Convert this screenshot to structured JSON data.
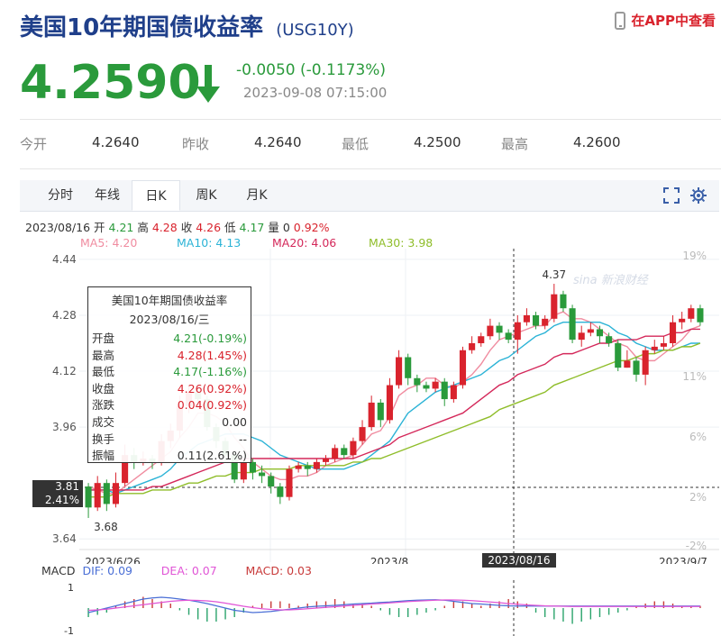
{
  "header": {
    "title": "美国10年期国债收益率",
    "code": "(USG10Y)",
    "app_link": "在APP中查看",
    "phone_icon": "phone-icon"
  },
  "quote": {
    "price": "4.2590",
    "change": "-0.0050 (-0.1173%)",
    "timestamp": "2023-09-08 07:15:00",
    "down_color": "#2a9a3b",
    "up_color": "#d9232d"
  },
  "stats": [
    {
      "label": "今开",
      "value": "4.2640"
    },
    {
      "label": "昨收",
      "value": "4.2640"
    },
    {
      "label": "最低",
      "value": "4.2500"
    },
    {
      "label": "最高",
      "value": "4.2600"
    }
  ],
  "tabs": [
    {
      "label": "分时"
    },
    {
      "label": "年线"
    },
    {
      "label": "日K"
    },
    {
      "label": "周K"
    },
    {
      "label": "月K"
    }
  ],
  "active_tab": "日K",
  "info_bar": {
    "date": "2023/08/16",
    "open_label": "开",
    "open": "4.21",
    "high_label": "高",
    "high": "4.28",
    "close_label": "收",
    "close": "4.26",
    "low_label": "低",
    "low": "4.17",
    "vol_label": "量",
    "vol": "0",
    "pct": "0.92%"
  },
  "ma_bar": [
    {
      "text": "MA5: 4.20",
      "color": "#f08ca0"
    },
    {
      "text": "MA10: 4.13",
      "color": "#2bb3d6"
    },
    {
      "text": "MA20: 4.06",
      "color": "#d4285a"
    },
    {
      "text": "MA30: 3.98",
      "color": "#8fbd2a"
    }
  ],
  "tooltip": {
    "title": "美国10年期国债收益率",
    "date": "2023/08/16/三",
    "rows": [
      {
        "k": "开盘",
        "v": "4.21(-0.19%)",
        "c": "#2a9a3b"
      },
      {
        "k": "最高",
        "v": "4.28(1.45%)",
        "c": "#d9232d"
      },
      {
        "k": "最低",
        "v": "4.17(-1.16%)",
        "c": "#2a9a3b"
      },
      {
        "k": "收盘",
        "v": "4.26(0.92%)",
        "c": "#d9232d"
      },
      {
        "k": "涨跌",
        "v": "0.04(0.92%)",
        "c": "#d9232d"
      },
      {
        "k": "成交",
        "v": "0.00",
        "c": "#333333"
      },
      {
        "k": "换手",
        "v": "--",
        "c": "#333333"
      },
      {
        "k": "振幅",
        "v": "0.11(2.61%)",
        "c": "#333333"
      }
    ]
  },
  "crosshair": {
    "price_label": "3.81",
    "pct_label": "2.41%",
    "date_label": "2023/08/16"
  },
  "watermark": "sina 新浪财经",
  "macd": {
    "label": "MACD",
    "dif": "DIF: 0.09",
    "dea": "DEA: 0.07",
    "macd": "MACD: 0.03",
    "axis_top": "1",
    "axis_bottom": "-1",
    "dif_color": "#4a6fd6",
    "dea_color": "#e055d6",
    "macd_color": "#c83a3a"
  },
  "chart_data": {
    "type": "candlestick",
    "y_ticks": [
      "4.44",
      "4.28",
      "4.12",
      "3.96",
      "3.64"
    ],
    "pct_ticks": [
      "19%",
      "11%",
      "6%",
      "2%",
      "-2%"
    ],
    "x_labels": [
      "2023/6/26",
      "2023/8",
      "2023/9/7"
    ],
    "ylim": [
      3.62,
      4.45
    ],
    "high_marker": "4.37",
    "low_marker": "3.68",
    "candles": [
      [
        3.79,
        3.73,
        3.8,
        3.7
      ],
      [
        3.73,
        3.8,
        3.82,
        3.72
      ],
      [
        3.8,
        3.74,
        3.81,
        3.72
      ],
      [
        3.74,
        3.8,
        3.83,
        3.73
      ],
      [
        3.8,
        3.88,
        3.91,
        3.79
      ],
      [
        3.88,
        3.86,
        3.9,
        3.84
      ],
      [
        3.86,
        3.87,
        3.89,
        3.85
      ],
      [
        3.87,
        3.86,
        3.88,
        3.84
      ],
      [
        3.86,
        3.92,
        3.94,
        3.85
      ],
      [
        3.92,
        3.95,
        3.97,
        3.9
      ],
      [
        3.95,
        4.02,
        4.05,
        3.93
      ],
      [
        4.02,
        4.06,
        4.08,
        4.0
      ],
      [
        4.06,
        4.04,
        4.07,
        4.02
      ],
      [
        4.04,
        3.96,
        4.05,
        3.95
      ],
      [
        3.96,
        3.92,
        3.97,
        3.9
      ],
      [
        3.92,
        3.88,
        3.93,
        3.86
      ],
      [
        3.88,
        3.81,
        3.89,
        3.8
      ],
      [
        3.81,
        3.86,
        3.87,
        3.8
      ],
      [
        3.86,
        3.83,
        3.87,
        3.81
      ],
      [
        3.83,
        3.82,
        3.85,
        3.8
      ],
      [
        3.82,
        3.79,
        3.83,
        3.77
      ],
      [
        3.79,
        3.76,
        3.8,
        3.74
      ],
      [
        3.76,
        3.84,
        3.85,
        3.75
      ],
      [
        3.84,
        3.85,
        3.86,
        3.83
      ],
      [
        3.85,
        3.84,
        3.86,
        3.82
      ],
      [
        3.84,
        3.86,
        3.87,
        3.83
      ],
      [
        3.86,
        3.87,
        3.88,
        3.85
      ],
      [
        3.87,
        3.9,
        3.91,
        3.86
      ],
      [
        3.9,
        3.88,
        3.91,
        3.87
      ],
      [
        3.88,
        3.92,
        3.93,
        3.87
      ],
      [
        3.92,
        3.96,
        3.98,
        3.91
      ],
      [
        3.96,
        4.03,
        4.05,
        3.95
      ],
      [
        4.03,
        3.98,
        4.04,
        3.96
      ],
      [
        3.98,
        4.08,
        4.1,
        3.97
      ],
      [
        4.08,
        4.16,
        4.18,
        4.07
      ],
      [
        4.16,
        4.1,
        4.17,
        4.08
      ],
      [
        4.1,
        4.08,
        4.11,
        4.06
      ],
      [
        4.08,
        4.07,
        4.09,
        4.06
      ],
      [
        4.07,
        4.09,
        4.1,
        4.06
      ],
      [
        4.09,
        4.04,
        4.1,
        4.02
      ],
      [
        4.04,
        4.08,
        4.09,
        4.03
      ],
      [
        4.08,
        4.18,
        4.19,
        4.07
      ],
      [
        4.18,
        4.2,
        4.22,
        4.17
      ],
      [
        4.2,
        4.22,
        4.23,
        4.19
      ],
      [
        4.22,
        4.25,
        4.27,
        4.21
      ],
      [
        4.25,
        4.23,
        4.26,
        4.21
      ],
      [
        4.23,
        4.21,
        4.24,
        4.2
      ],
      [
        4.21,
        4.26,
        4.28,
        4.17
      ],
      [
        4.26,
        4.28,
        4.3,
        4.25
      ],
      [
        4.28,
        4.25,
        4.29,
        4.24
      ],
      [
        4.25,
        4.27,
        4.28,
        4.24
      ],
      [
        4.27,
        4.34,
        4.37,
        4.26
      ],
      [
        4.34,
        4.3,
        4.35,
        4.29
      ],
      [
        4.3,
        4.21,
        4.31,
        4.2
      ],
      [
        4.21,
        4.23,
        4.25,
        4.19
      ],
      [
        4.23,
        4.24,
        4.26,
        4.22
      ],
      [
        4.24,
        4.22,
        4.25,
        4.2
      ],
      [
        4.22,
        4.2,
        4.23,
        4.19
      ],
      [
        4.2,
        4.13,
        4.21,
        4.12
      ],
      [
        4.13,
        4.15,
        4.18,
        4.13
      ],
      [
        4.15,
        4.11,
        4.16,
        4.09
      ],
      [
        4.11,
        4.18,
        4.19,
        4.08
      ],
      [
        4.18,
        4.19,
        4.21,
        4.17
      ],
      [
        4.19,
        4.2,
        4.22,
        4.18
      ],
      [
        4.2,
        4.26,
        4.28,
        4.19
      ],
      [
        4.26,
        4.27,
        4.29,
        4.24
      ],
      [
        4.27,
        4.3,
        4.31,
        4.26
      ],
      [
        4.3,
        4.26,
        4.31,
        4.25
      ]
    ],
    "ma5": [
      3.79,
      3.78,
      3.77,
      3.77,
      3.79,
      3.81,
      3.83,
      3.85,
      3.87,
      3.89,
      3.93,
      3.96,
      4.0,
      4.0,
      3.99,
      3.97,
      3.93,
      3.9,
      3.86,
      3.84,
      3.82,
      3.81,
      3.81,
      3.82,
      3.82,
      3.83,
      3.85,
      3.86,
      3.87,
      3.88,
      3.91,
      3.94,
      3.95,
      3.99,
      4.05,
      4.07,
      4.08,
      4.1,
      4.1,
      4.08,
      4.07,
      4.09,
      4.11,
      4.14,
      4.18,
      4.21,
      4.22,
      4.23,
      4.24,
      4.25,
      4.25,
      4.28,
      4.29,
      4.27,
      4.27,
      4.26,
      4.24,
      4.22,
      4.2,
      4.19,
      4.16,
      4.15,
      4.15,
      4.17,
      4.19,
      4.21,
      4.24,
      4.25
    ],
    "ma10": [
      3.78,
      3.78,
      3.78,
      3.77,
      3.78,
      3.79,
      3.8,
      3.81,
      3.82,
      3.84,
      3.87,
      3.89,
      3.91,
      3.92,
      3.93,
      3.94,
      3.94,
      3.94,
      3.93,
      3.92,
      3.9,
      3.88,
      3.87,
      3.86,
      3.85,
      3.84,
      3.84,
      3.84,
      3.84,
      3.85,
      3.86,
      3.88,
      3.9,
      3.92,
      3.96,
      4.0,
      4.02,
      4.04,
      4.06,
      4.07,
      4.08,
      4.09,
      4.1,
      4.11,
      4.13,
      4.15,
      4.16,
      4.18,
      4.2,
      4.22,
      4.23,
      4.25,
      4.26,
      4.26,
      4.26,
      4.26,
      4.26,
      4.25,
      4.23,
      4.22,
      4.2,
      4.19,
      4.18,
      4.18,
      4.18,
      4.19,
      4.2,
      4.2
    ],
    "ma20": [
      3.78,
      3.78,
      3.78,
      3.78,
      3.78,
      3.78,
      3.78,
      3.79,
      3.79,
      3.8,
      3.81,
      3.82,
      3.83,
      3.84,
      3.85,
      3.86,
      3.86,
      3.87,
      3.87,
      3.87,
      3.87,
      3.87,
      3.87,
      3.87,
      3.87,
      3.87,
      3.87,
      3.87,
      3.87,
      3.87,
      3.88,
      3.89,
      3.9,
      3.91,
      3.93,
      3.94,
      3.95,
      3.96,
      3.97,
      3.98,
      3.99,
      4.0,
      4.02,
      4.04,
      4.06,
      4.08,
      4.09,
      4.11,
      4.12,
      4.13,
      4.14,
      4.16,
      4.17,
      4.17,
      4.18,
      4.19,
      4.2,
      4.2,
      4.21,
      4.21,
      4.21,
      4.22,
      4.22,
      4.22,
      4.23,
      4.23,
      4.24,
      4.24
    ],
    "ma30": [
      3.76,
      3.76,
      3.76,
      3.77,
      3.77,
      3.77,
      3.77,
      3.78,
      3.78,
      3.78,
      3.79,
      3.8,
      3.8,
      3.81,
      3.82,
      3.82,
      3.83,
      3.83,
      3.83,
      3.84,
      3.84,
      3.84,
      3.84,
      3.85,
      3.85,
      3.85,
      3.85,
      3.85,
      3.85,
      3.86,
      3.86,
      3.87,
      3.87,
      3.88,
      3.89,
      3.9,
      3.91,
      3.92,
      3.93,
      3.94,
      3.95,
      3.96,
      3.97,
      3.98,
      3.99,
      4.01,
      4.02,
      4.03,
      4.04,
      4.05,
      4.06,
      4.08,
      4.09,
      4.1,
      4.11,
      4.12,
      4.13,
      4.14,
      4.15,
      4.15,
      4.16,
      4.17,
      4.17,
      4.18,
      4.18,
      4.19,
      4.19,
      4.2
    ],
    "macd_hist": [
      -0.4,
      -0.3,
      -0.2,
      0.1,
      0.3,
      0.4,
      0.5,
      0.4,
      0.3,
      0.2,
      -0.1,
      -0.3,
      -0.5,
      -0.6,
      -0.6,
      -0.5,
      -0.4,
      -0.2,
      0.1,
      0.2,
      0.3,
      0.3,
      0.2,
      0.1,
      0.2,
      0.3,
      0.3,
      0.4,
      0.3,
      0.2,
      0.2,
      0.1,
      -0.1,
      -0.3,
      -0.4,
      -0.4,
      -0.3,
      -0.2,
      -0.1,
      0.1,
      0.3,
      0.3,
      0.2,
      0.1,
      0.2,
      0.3,
      0.4,
      0.3,
      0.2,
      -0.2,
      -0.4,
      -0.5,
      -0.6,
      -0.7,
      -0.6,
      -0.5,
      -0.4,
      -0.3,
      -0.2,
      -0.1,
      0.1,
      0.2,
      0.3,
      0.3,
      0.2,
      0.1,
      0.1,
      0.1
    ],
    "dif": [
      -0.2,
      -0.1,
      0,
      0.1,
      0.2,
      0.3,
      0.4,
      0.45,
      0.48,
      0.45,
      0.4,
      0.35,
      0.28,
      0.2,
      0.1,
      0,
      -0.1,
      -0.15,
      -0.2,
      -0.18,
      -0.15,
      -0.1,
      -0.05,
      0,
      0.05,
      0.08,
      0.1,
      0.12,
      0.15,
      0.18,
      0.2,
      0.22,
      0.25,
      0.27,
      0.3,
      0.33,
      0.35,
      0.36,
      0.37,
      0.35,
      0.3,
      0.25,
      0.2,
      0.18,
      0.15,
      0.12,
      0.1,
      0.09,
      0.09,
      0.09,
      0.09,
      0.09,
      0.09,
      0.09,
      0.09,
      0.09,
      0.09,
      0.09,
      0.09,
      0.09,
      0.09,
      0.09,
      0.09,
      0.09,
      0.09,
      0.09,
      0.09,
      0.09
    ],
    "dea": [
      -0.1,
      -0.08,
      -0.05,
      0,
      0.05,
      0.1,
      0.15,
      0.2,
      0.25,
      0.3,
      0.33,
      0.35,
      0.34,
      0.32,
      0.28,
      0.22,
      0.15,
      0.08,
      0.02,
      -0.03,
      -0.06,
      -0.08,
      -0.08,
      -0.06,
      -0.03,
      0,
      0.03,
      0.06,
      0.09,
      0.12,
      0.15,
      0.18,
      0.2,
      0.23,
      0.26,
      0.29,
      0.31,
      0.33,
      0.35,
      0.36,
      0.36,
      0.35,
      0.33,
      0.3,
      0.27,
      0.24,
      0.2,
      0.17,
      0.14,
      0.12,
      0.1,
      0.09,
      0.08,
      0.07,
      0.07,
      0.07,
      0.07,
      0.07,
      0.07,
      0.07,
      0.07,
      0.07,
      0.07,
      0.07,
      0.07,
      0.07,
      0.07,
      0.07
    ]
  }
}
